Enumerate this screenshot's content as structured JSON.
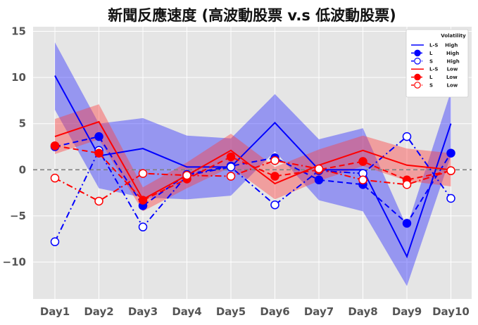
{
  "chart_data": {
    "type": "line",
    "title": "新聞反應速度 (高波動股票 v.s 低波動股票)",
    "xlabel": "",
    "ylabel": "",
    "categories": [
      "Day1",
      "Day2",
      "Day3",
      "Day4",
      "Day5",
      "Day6",
      "Day7",
      "Day8",
      "Day9",
      "Day10"
    ],
    "ylim": [
      -14,
      15.5
    ],
    "yticks": [
      -10,
      -5,
      0,
      5,
      10,
      15
    ],
    "yticks_labels": [
      "−10",
      "−5",
      "0",
      "5",
      "10",
      "15"
    ],
    "grid": true,
    "zero_line": 0,
    "legend": {
      "title": "Volatility",
      "placement": "top-right"
    },
    "series": [
      {
        "name": "L-S    High",
        "color": "#0000ff",
        "style": "solid",
        "marker": "none",
        "values": [
          10.2,
          1.5,
          2.3,
          0.3,
          0.3,
          5.1,
          0.0,
          0.0,
          -9.4,
          5.0
        ],
        "band": {
          "lower": [
            6.5,
            -2.0,
            -3.0,
            -3.2,
            -2.8,
            2.0,
            -3.3,
            -4.5,
            -12.6,
            1.5
          ],
          "upper": [
            13.8,
            5.0,
            5.6,
            3.7,
            3.4,
            8.2,
            3.3,
            4.5,
            -6.2,
            8.5
          ]
        }
      },
      {
        "name": "L        High",
        "color": "#0000ff",
        "style": "dashed",
        "marker": "filled",
        "values": [
          2.5,
          3.6,
          -3.9,
          -0.5,
          0.4,
          1.3,
          -1.1,
          -1.6,
          -5.8,
          1.8
        ]
      },
      {
        "name": "S        High",
        "color": "#0000ff",
        "style": "dashdot",
        "marker": "open",
        "values": [
          -7.8,
          2.1,
          -6.2,
          -0.6,
          0.3,
          -3.8,
          -0.1,
          -0.4,
          3.6,
          -3.1
        ]
      },
      {
        "name": "L-S     Low",
        "color": "#ff0000",
        "style": "solid",
        "marker": "none",
        "values": [
          3.6,
          5.2,
          -3.2,
          -0.6,
          2.1,
          -1.5,
          0.5,
          2.1,
          0.5,
          0.0
        ],
        "band": {
          "lower": [
            1.7,
            3.3,
            -4.5,
            -2.0,
            0.3,
            -3.2,
            -1.2,
            0.4,
            -1.2,
            -1.8
          ],
          "upper": [
            5.5,
            7.1,
            -1.9,
            0.8,
            3.9,
            0.3,
            2.2,
            3.7,
            2.3,
            1.8
          ]
        }
      },
      {
        "name": "L        Low",
        "color": "#ff0000",
        "style": "dashed",
        "marker": "filled",
        "values": [
          2.6,
          1.8,
          -3.3,
          -1.0,
          1.4,
          -0.7,
          0.0,
          0.9,
          -1.1,
          -0.1
        ]
      },
      {
        "name": "S        Low",
        "color": "#ff0000",
        "style": "dashdot",
        "marker": "open",
        "values": [
          -0.9,
          -3.4,
          -0.4,
          -0.6,
          -0.7,
          1.0,
          0.1,
          -1.1,
          -1.6,
          -0.1
        ]
      }
    ]
  }
}
